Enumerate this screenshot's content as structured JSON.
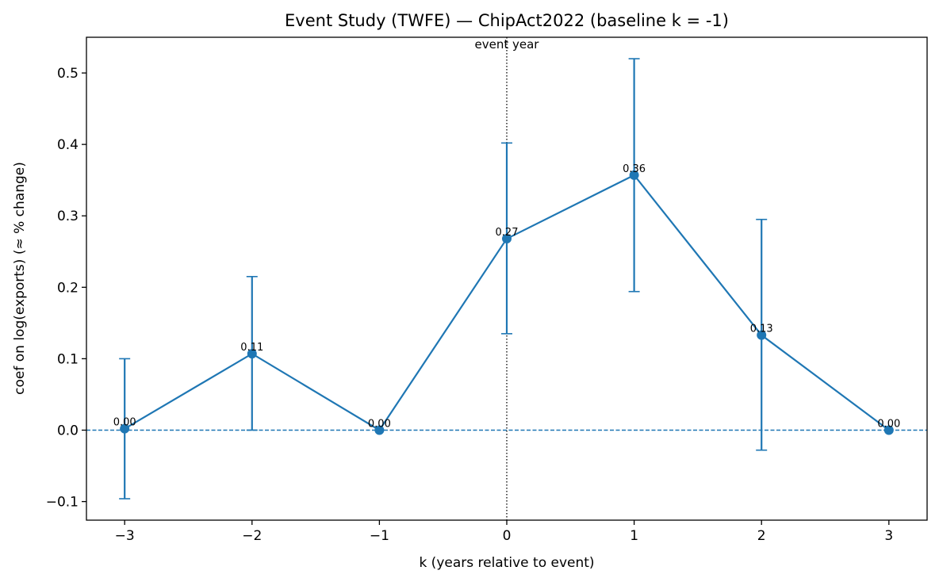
{
  "chart_data": {
    "type": "line",
    "title": "Event Study (TWFE) — ChipAct2022  (baseline k = -1)",
    "xlabel": "k (years relative to event)",
    "ylabel": "coef on log(exports)  (≈ % change)",
    "xlim": [
      -3.3,
      3.3
    ],
    "ylim": [
      -0.126,
      0.55
    ],
    "x_ticks": [
      -3,
      -2,
      -1,
      0,
      1,
      2,
      3
    ],
    "x_tick_labels": [
      "−3",
      "−2",
      "−1",
      "0",
      "1",
      "2",
      "3"
    ],
    "y_ticks": [
      -0.1,
      0.0,
      0.1,
      0.2,
      0.3,
      0.4,
      0.5
    ],
    "y_tick_labels": [
      "−0.1",
      "0.0",
      "0.1",
      "0.2",
      "0.3",
      "0.4",
      "0.5"
    ],
    "grid": false,
    "color": "#1f77b4",
    "series": [
      {
        "x": [
          -3,
          -2,
          -1,
          0,
          1,
          2,
          3
        ],
        "y": [
          0.002,
          0.107,
          0.0,
          0.268,
          0.357,
          0.133,
          0.0
        ],
        "ci_low": [
          -0.096,
          0.0,
          0.0,
          0.135,
          0.194,
          -0.028,
          0.0
        ],
        "ci_high": [
          0.1,
          0.215,
          0.0,
          0.402,
          0.52,
          0.295,
          0.0
        ],
        "labels": [
          "0.00",
          "0.11",
          "0.00",
          "0.27",
          "0.36",
          "0.13",
          "0.00"
        ]
      }
    ],
    "reference_lines": {
      "horizontal_y": 0.0,
      "vertical_x": 0,
      "vertical_label": "event year"
    }
  }
}
